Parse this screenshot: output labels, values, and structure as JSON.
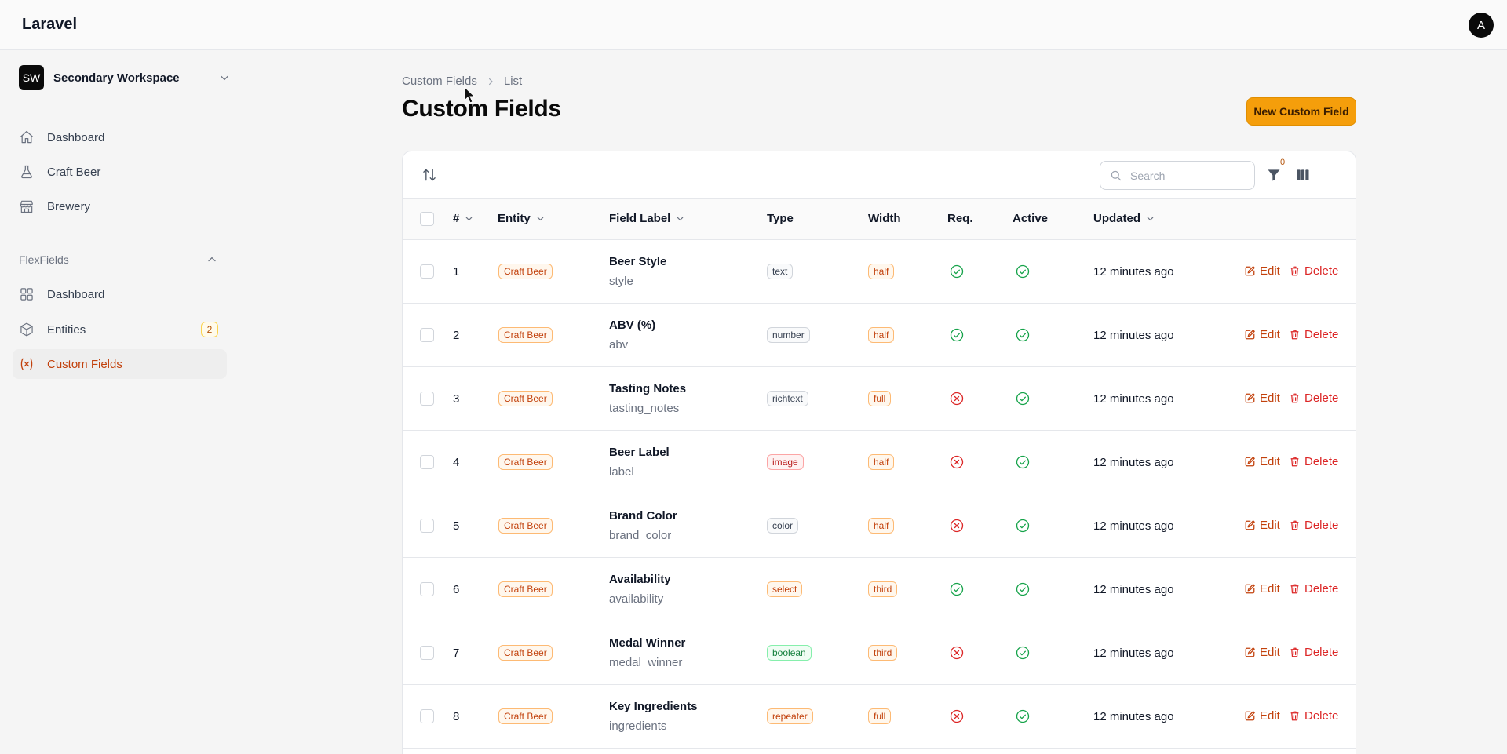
{
  "header": {
    "brand": "Laravel",
    "avatar_initial": "A"
  },
  "sidebar": {
    "workspace": {
      "initials": "SW",
      "name": "Secondary Workspace"
    },
    "items": [
      {
        "label": "Dashboard",
        "icon": "home-icon"
      },
      {
        "label": "Craft Beer",
        "icon": "beaker-icon"
      },
      {
        "label": "Brewery",
        "icon": "building-storefront-icon"
      }
    ],
    "group": {
      "title": "FlexFields",
      "items": [
        {
          "label": "Dashboard",
          "icon": "squares-icon"
        },
        {
          "label": "Entities",
          "icon": "cube-icon",
          "badge": "2"
        },
        {
          "label": "Custom Fields",
          "icon": "variable-icon",
          "active": true
        }
      ]
    }
  },
  "breadcrumb": {
    "parent": "Custom Fields",
    "current": "List"
  },
  "page": {
    "title": "Custom Fields",
    "new_button": "New Custom Field"
  },
  "toolbar": {
    "search_placeholder": "Search",
    "filter_count": "0"
  },
  "table": {
    "columns": {
      "number": "#",
      "entity": "Entity",
      "field_label": "Field Label",
      "type": "Type",
      "width": "Width",
      "required": "Req.",
      "active": "Active",
      "updated": "Updated"
    },
    "actions": {
      "edit": "Edit",
      "delete": "Delete"
    },
    "rows": [
      {
        "num": "1",
        "entity": "Craft Beer",
        "label": "Beer Style",
        "key": "style",
        "type": "text",
        "width": "half",
        "required": true,
        "active": true,
        "updated": "12 minutes ago"
      },
      {
        "num": "2",
        "entity": "Craft Beer",
        "label": "ABV (%)",
        "key": "abv",
        "type": "number",
        "width": "half",
        "required": true,
        "active": true,
        "updated": "12 minutes ago"
      },
      {
        "num": "3",
        "entity": "Craft Beer",
        "label": "Tasting Notes",
        "key": "tasting_notes",
        "type": "richtext",
        "width": "full",
        "required": false,
        "active": true,
        "updated": "12 minutes ago"
      },
      {
        "num": "4",
        "entity": "Craft Beer",
        "label": "Beer Label",
        "key": "label",
        "type": "image",
        "width": "half",
        "required": false,
        "active": true,
        "updated": "12 minutes ago"
      },
      {
        "num": "5",
        "entity": "Craft Beer",
        "label": "Brand Color",
        "key": "brand_color",
        "type": "color",
        "width": "half",
        "required": false,
        "active": true,
        "updated": "12 minutes ago"
      },
      {
        "num": "6",
        "entity": "Craft Beer",
        "label": "Availability",
        "key": "availability",
        "type": "select",
        "width": "third",
        "required": true,
        "active": true,
        "updated": "12 minutes ago"
      },
      {
        "num": "7",
        "entity": "Craft Beer",
        "label": "Medal Winner",
        "key": "medal_winner",
        "type": "boolean",
        "width": "third",
        "required": false,
        "active": true,
        "updated": "12 minutes ago"
      },
      {
        "num": "8",
        "entity": "Craft Beer",
        "label": "Key Ingredients",
        "key": "ingredients",
        "type": "repeater",
        "width": "full",
        "required": false,
        "active": true,
        "updated": "12 minutes ago"
      }
    ]
  },
  "colors": {
    "accent": "#f59e0b",
    "success": "#16a34a",
    "danger": "#dc2626",
    "active_nav": "#c2410c"
  }
}
